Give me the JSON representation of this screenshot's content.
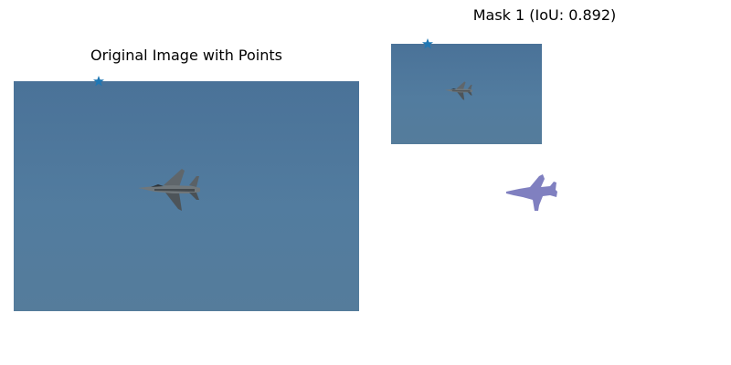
{
  "figure": {
    "left_title": "Original Image with Points",
    "right_title": "Mask 1 (IoU: 0.892)",
    "iou": 0.892
  },
  "colors": {
    "sky": "#4f779c",
    "point_marker": "#1f77b4",
    "mask_fill": "#8080c0",
    "jet_body": "#6e7478"
  },
  "icons": {
    "point": "star-icon",
    "aircraft": "jet-icon"
  }
}
